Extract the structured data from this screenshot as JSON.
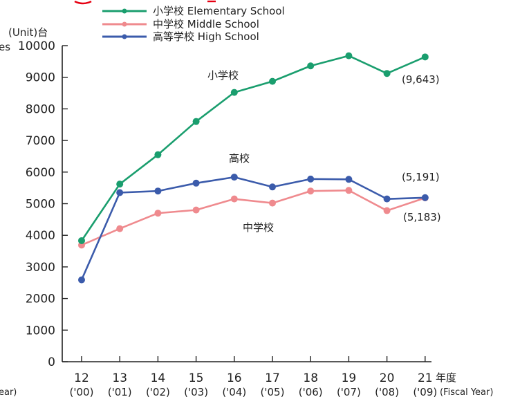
{
  "colors": {
    "elementary": "#1a9e6e",
    "middle": "#ef8a8e",
    "high": "#3b5bab",
    "axis": "#222222",
    "top_red": "#e60012"
  },
  "texts": {
    "unit": "(Unit)台",
    "ylabel_fragment": "es",
    "xlabel_jp": "年度",
    "xlabel_en": "(Fiscal Year)",
    "xlabel_left_fragment": "ear)"
  },
  "chart_data": {
    "type": "line",
    "ylim": [
      0,
      10000
    ],
    "yticks": [
      0,
      1000,
      2000,
      3000,
      4000,
      5000,
      6000,
      7000,
      8000,
      9000,
      10000
    ],
    "categories": [
      "12",
      "13",
      "14",
      "15",
      "16",
      "17",
      "18",
      "19",
      "20",
      "21"
    ],
    "categories_sub": [
      "('00)",
      "('01)",
      "('02)",
      "('03)",
      "('04)",
      "('05)",
      "('06)",
      "('07)",
      "('08)",
      "('09)"
    ],
    "legend_position": "top",
    "series": [
      {
        "key": "elementary",
        "name": "小学校 Elementary School",
        "values": [
          3830,
          5620,
          6550,
          7600,
          8520,
          8870,
          9360,
          9680,
          9120,
          9643
        ]
      },
      {
        "key": "middle",
        "name": "中学校 Middle School",
        "values": [
          3690,
          4210,
          4700,
          4800,
          5150,
          5020,
          5400,
          5420,
          4780,
          5183
        ]
      },
      {
        "key": "high",
        "name": "高等学校 High School",
        "values": [
          2590,
          5350,
          5400,
          5650,
          5840,
          5530,
          5780,
          5770,
          5150,
          5191
        ]
      }
    ],
    "annotations": [
      {
        "key": "ann-elementary-label",
        "text": "小学校"
      },
      {
        "key": "ann-elementary-value",
        "text": "(9,643)"
      },
      {
        "key": "ann-high-label",
        "text": "高校"
      },
      {
        "key": "ann-high-value",
        "text": "(5,191)"
      },
      {
        "key": "ann-middle-label",
        "text": "中学校"
      },
      {
        "key": "ann-middle-value",
        "text": "(5,183)"
      }
    ]
  }
}
